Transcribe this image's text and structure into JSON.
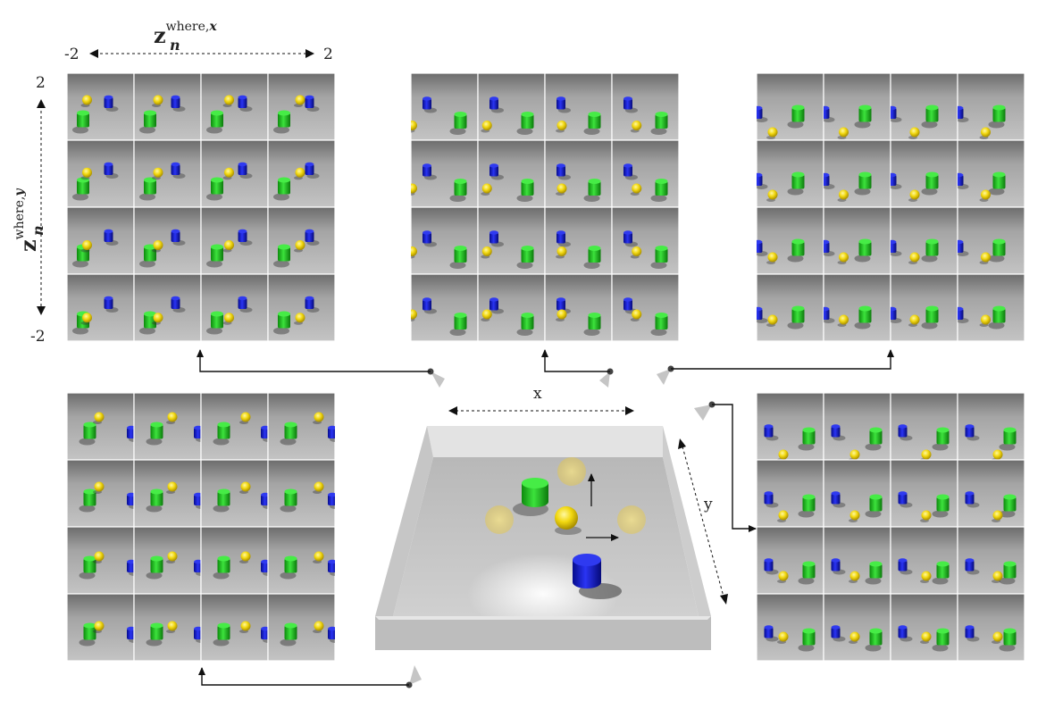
{
  "axis_x": {
    "symbol": "z",
    "subscript": "n",
    "superscript": "where,",
    "superscript_var": "x",
    "min_label": "-2",
    "max_label": "2"
  },
  "axis_y": {
    "symbol": "z",
    "subscript": "n",
    "superscript": "where,",
    "superscript_var": "y",
    "max_label": "2",
    "min_label": "-2"
  },
  "scene": {
    "x_label": "x",
    "y_label": "y"
  },
  "grids": [
    {
      "id": "top-left",
      "rows": 4,
      "cols": 4
    },
    {
      "id": "top-middle",
      "rows": 4,
      "cols": 4
    },
    {
      "id": "top-right",
      "rows": 4,
      "cols": 4
    },
    {
      "id": "bottom-left",
      "rows": 4,
      "cols": 4
    },
    {
      "id": "bottom-right",
      "rows": 4,
      "cols": 4
    }
  ],
  "colors": {
    "green": "#20c020",
    "yellow": "#f2dc10",
    "blue": "#1018d8",
    "floor": "#a8a8a8",
    "arrow": "#111111"
  }
}
